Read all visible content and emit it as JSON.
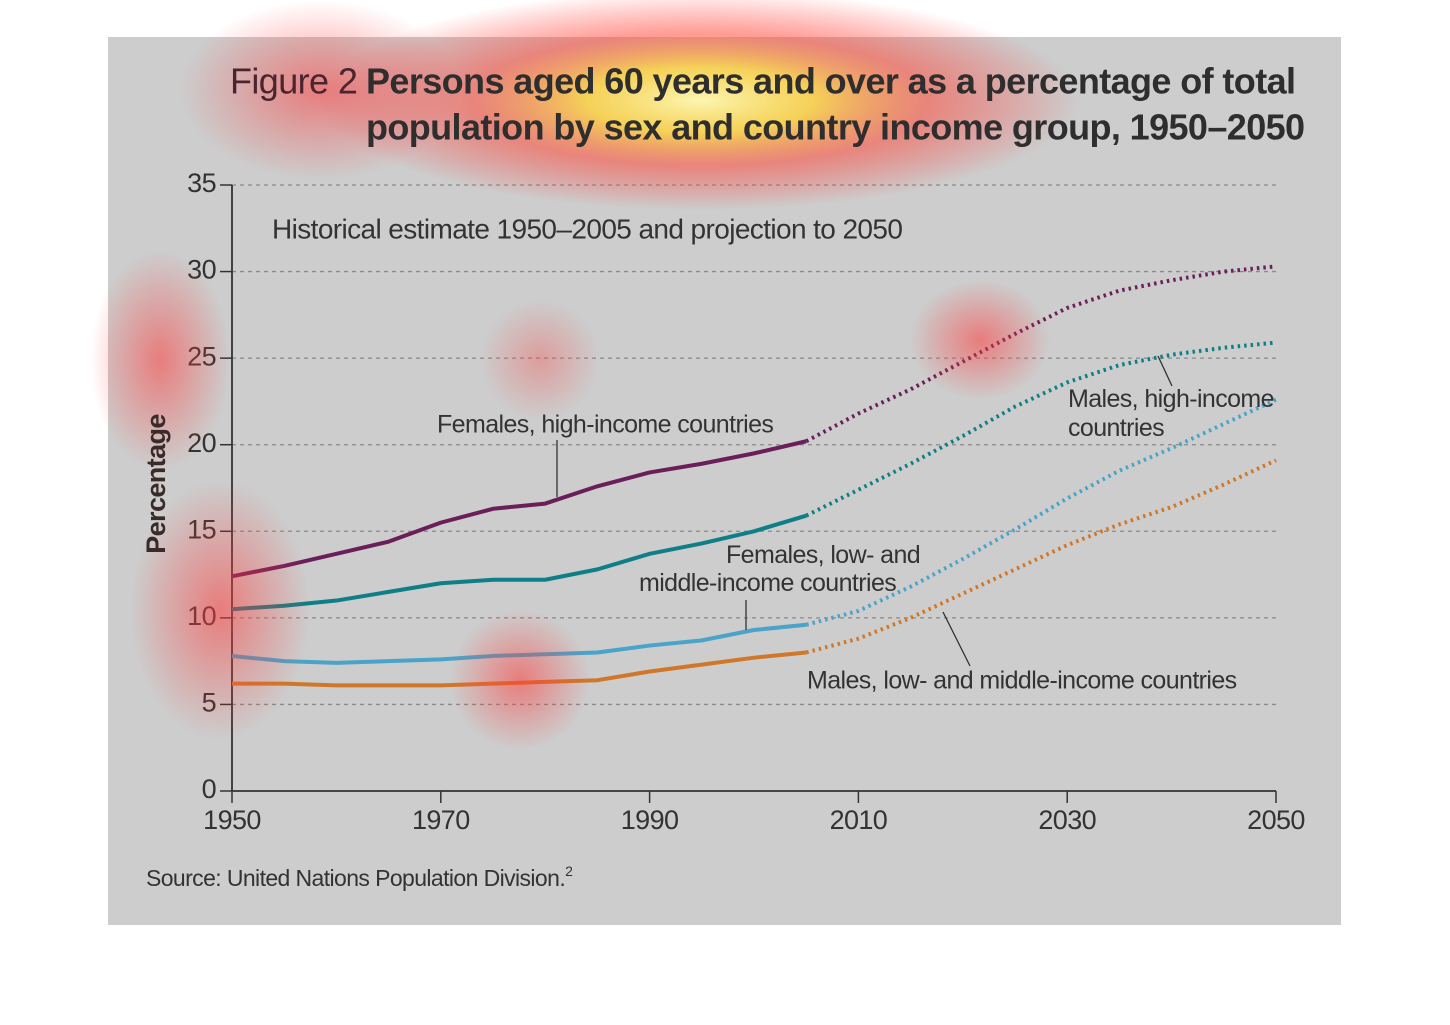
{
  "chart_data": {
    "type": "line",
    "figure_label": "Figure 2",
    "title": [
      "Persons aged 60 years and over as a percentage of total",
      "population by sex and country income group, 1950–2050"
    ],
    "subtitle": "Historical estimate 1950–2005 and projection to 2050",
    "ylabel": "Percentage",
    "source": "Source: United Nations Population Division.",
    "source_note": "2",
    "projection_start": 2005,
    "x": [
      1950,
      1955,
      1960,
      1965,
      1970,
      1975,
      1980,
      1985,
      1990,
      1995,
      2000,
      2005,
      2010,
      2015,
      2020,
      2025,
      2030,
      2035,
      2040,
      2045,
      2050
    ],
    "series": [
      {
        "name": "Females, high-income countries",
        "color": "#6b1f5a",
        "values": [
          12.4,
          13.0,
          13.7,
          14.4,
          15.5,
          16.3,
          16.6,
          17.6,
          18.4,
          18.9,
          19.5,
          20.2,
          21.8,
          23.2,
          24.8,
          26.4,
          27.9,
          28.9,
          29.5,
          30.0,
          30.3
        ]
      },
      {
        "name": "Males, high-income countries",
        "color": "#0e7f86",
        "values": [
          10.5,
          10.7,
          11.0,
          11.5,
          12.0,
          12.2,
          12.2,
          12.8,
          13.7,
          14.3,
          15.0,
          15.9,
          17.4,
          18.9,
          20.5,
          22.2,
          23.6,
          24.6,
          25.2,
          25.6,
          25.9
        ]
      },
      {
        "name": "Females, low- and middle-income countries",
        "color": "#4aa3c8",
        "values": [
          7.8,
          7.5,
          7.4,
          7.5,
          7.6,
          7.8,
          7.9,
          8.0,
          8.4,
          8.7,
          9.3,
          9.6,
          10.4,
          11.8,
          13.4,
          15.1,
          16.9,
          18.5,
          19.8,
          21.2,
          22.6
        ]
      },
      {
        "name": "Males, low- and middle-income countries",
        "color": "#d0782a",
        "values": [
          6.2,
          6.2,
          6.1,
          6.1,
          6.1,
          6.2,
          6.3,
          6.4,
          6.9,
          7.3,
          7.7,
          8.0,
          8.8,
          10.0,
          11.4,
          12.8,
          14.2,
          15.4,
          16.4,
          17.7,
          19.1
        ]
      }
    ],
    "xlim": [
      1950,
      2050
    ],
    "xticks": [
      1950,
      1970,
      1990,
      2010,
      2030,
      2050
    ],
    "ylim": [
      0,
      35
    ],
    "yticks": [
      0,
      5,
      10,
      15,
      20,
      25,
      30,
      35
    ],
    "grid": true
  }
}
